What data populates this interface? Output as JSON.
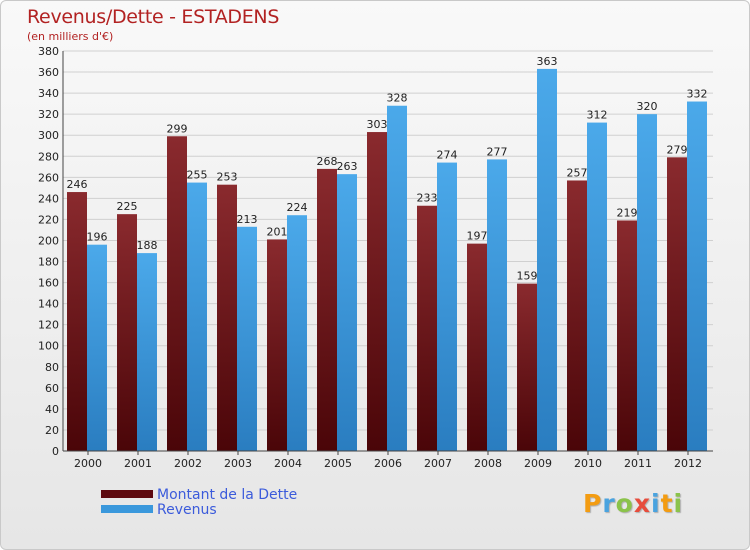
{
  "header": {
    "title": "Revenus/Dette - ESTADENS",
    "subtitle": "(en milliers d'€)"
  },
  "chart_data": {
    "type": "bar",
    "categories": [
      "2000",
      "2001",
      "2002",
      "2003",
      "2004",
      "2005",
      "2006",
      "2007",
      "2008",
      "2009",
      "2010",
      "2011",
      "2012"
    ],
    "series": [
      {
        "name": "Montant de la Dette",
        "values": [
          246,
          225,
          299,
          253,
          201,
          268,
          303,
          233,
          197,
          159,
          257,
          219,
          279
        ],
        "color": "#7a1e22"
      },
      {
        "name": "Revenus",
        "values": [
          196,
          188,
          255,
          213,
          224,
          263,
          328,
          274,
          277,
          363,
          312,
          320,
          332
        ],
        "color": "#3a98dc"
      }
    ],
    "ylim": [
      0,
      380
    ],
    "ytick_step": 20,
    "grid": true,
    "legend": "bottom-left"
  },
  "brand": {
    "letters": [
      "P",
      "r",
      "o",
      "x",
      "i",
      "t",
      "i"
    ],
    "colors": [
      "#f39c12",
      "#4aa3df",
      "#8bc34a",
      "#e74c3c",
      "#4aa3df",
      "#f39c12",
      "#8bc34a"
    ],
    "name": "Proxiti"
  }
}
